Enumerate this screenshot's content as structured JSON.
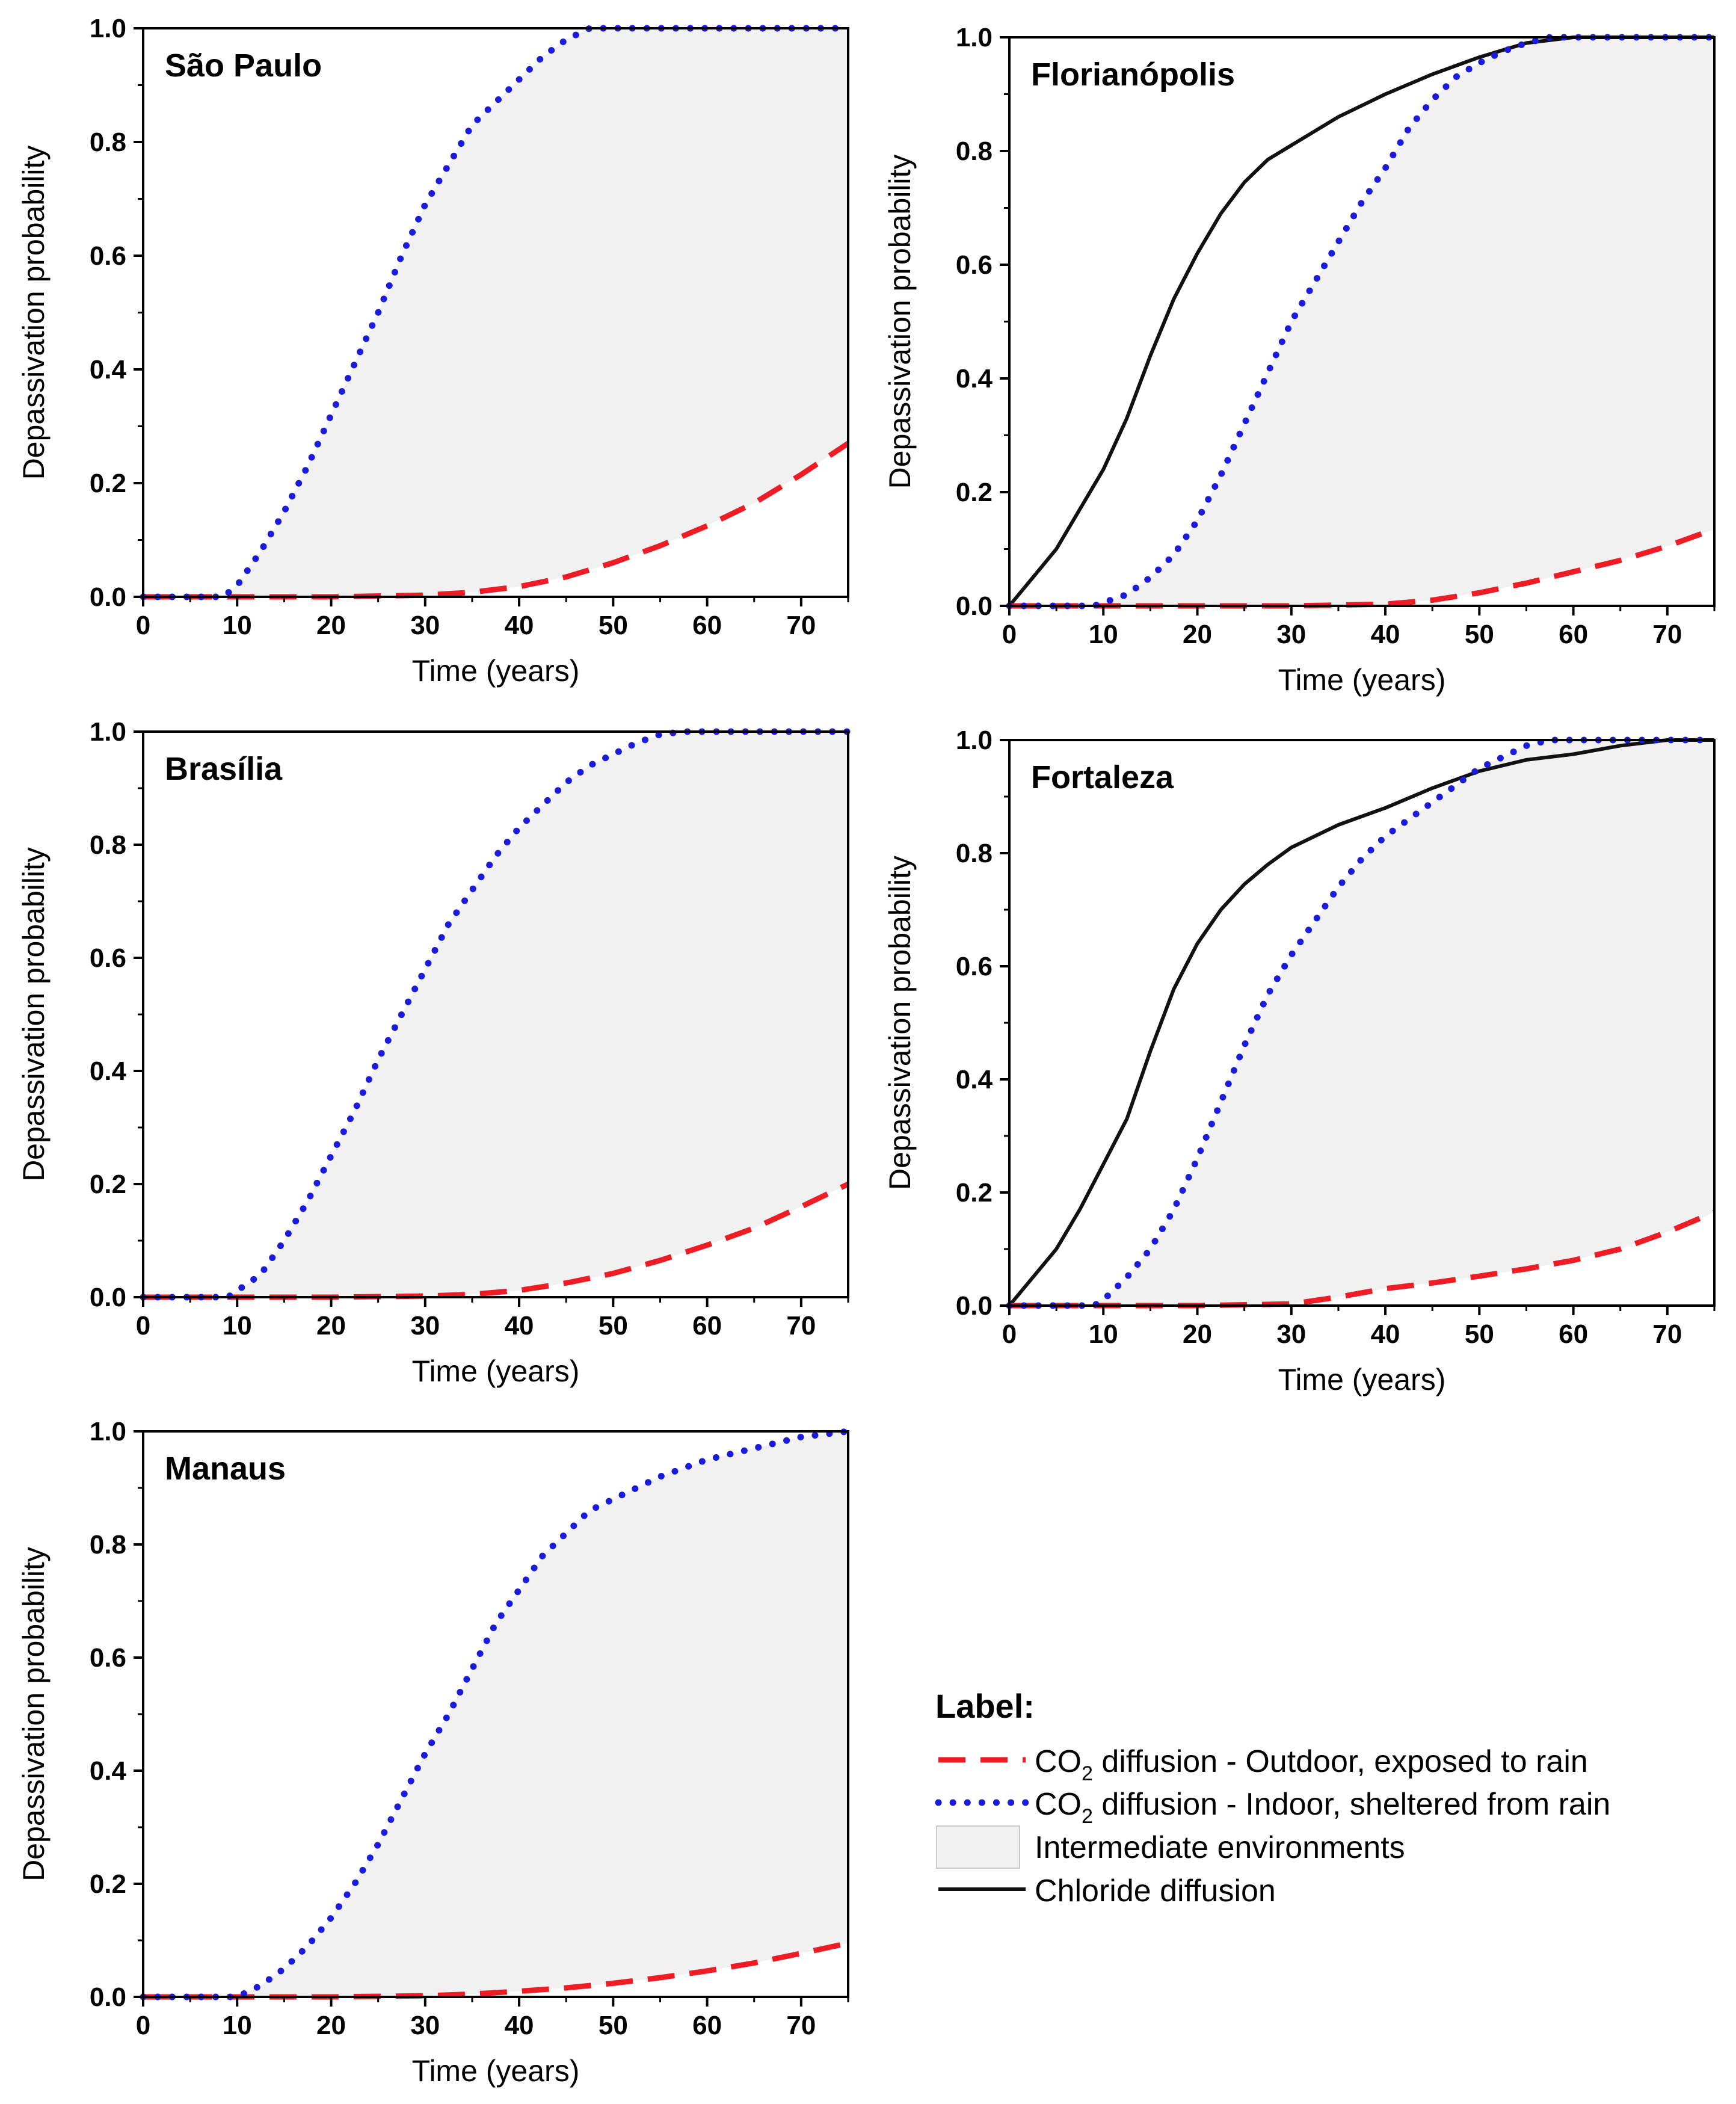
{
  "figure": {
    "legend": {
      "title": "Label:",
      "items": [
        {
          "key": "co2_outdoor",
          "prefix": "CO",
          "subscript": "2",
          "suffix": " diffusion - Outdoor, exposed to rain"
        },
        {
          "key": "co2_indoor",
          "prefix": "CO",
          "subscript": "2",
          "suffix": " diffusion - Indoor, sheltered from rain"
        },
        {
          "key": "intermediate",
          "prefix": "Intermediate environments",
          "subscript": "",
          "suffix": ""
        },
        {
          "key": "chloride",
          "prefix": "Chloride diffusion",
          "subscript": "",
          "suffix": ""
        }
      ]
    },
    "colors": {
      "co2_outdoor": "#ee1c25",
      "co2_indoor": "#1b1bdc",
      "chloride": "#111111",
      "intermediate_fill": "#f1f1f1",
      "axis": "#000000"
    }
  },
  "chart_data": [
    {
      "type": "line",
      "title": "São Paulo",
      "xlabel": "Time (years)",
      "ylabel": "Depassivation probability",
      "xlim": [
        0,
        75
      ],
      "ylim": [
        0,
        1
      ],
      "xticks": [
        0,
        10,
        20,
        30,
        40,
        50,
        60,
        70
      ],
      "yticks": [
        0.0,
        0.2,
        0.4,
        0.6,
        0.8,
        1.0
      ],
      "ytick_labels": [
        "0.0",
        "0.2",
        "0.4",
        "0.6",
        "0.8",
        "1.0"
      ],
      "series": [
        {
          "name": "CO2 diffusion - Outdoor, exposed to rain",
          "key": "co2_outdoor",
          "x": [
            0,
            10,
            20,
            30,
            35,
            40,
            45,
            50,
            55,
            60,
            65,
            70,
            75
          ],
          "y": [
            0,
            0,
            0,
            0.003,
            0.008,
            0.018,
            0.035,
            0.06,
            0.09,
            0.125,
            0.165,
            0.215,
            0.27
          ]
        },
        {
          "name": "CO2 diffusion - Indoor, sheltered from rain",
          "key": "co2_indoor",
          "x": [
            0,
            8.5,
            10,
            12.5,
            15,
            17.5,
            20,
            22.5,
            25,
            27.5,
            30,
            32.5,
            35,
            37.5,
            40,
            42.5,
            45,
            47.5,
            50,
            55,
            60,
            65,
            70,
            75
          ],
          "y": [
            0,
            0,
            0.02,
            0.08,
            0.15,
            0.23,
            0.32,
            0.41,
            0.5,
            0.6,
            0.69,
            0.76,
            0.83,
            0.87,
            0.91,
            0.95,
            0.98,
            1.0,
            1.0,
            1.0,
            1.0,
            1.0,
            1.0,
            1.0
          ]
        }
      ]
    },
    {
      "type": "line",
      "title": "Florianópolis",
      "xlabel": "Time (years)",
      "ylabel": "Depassivation probability",
      "xlim": [
        0,
        75
      ],
      "ylim": [
        0,
        1
      ],
      "xticks": [
        0,
        10,
        20,
        30,
        40,
        50,
        60,
        70
      ],
      "yticks": [
        0.0,
        0.2,
        0.4,
        0.6,
        0.8,
        1.0
      ],
      "ytick_labels": [
        "0.0",
        "0.2",
        "0.4",
        "0.6",
        "0.8",
        "1.0"
      ],
      "series": [
        {
          "name": "CO2 diffusion - Outdoor, exposed to rain",
          "key": "co2_outdoor",
          "x": [
            0,
            10,
            20,
            30,
            40,
            45,
            50,
            55,
            60,
            65,
            70,
            75
          ],
          "y": [
            0,
            0,
            0,
            0,
            0.003,
            0.01,
            0.023,
            0.04,
            0.06,
            0.08,
            0.105,
            0.135
          ]
        },
        {
          "name": "CO2 diffusion - Indoor, sheltered from rain",
          "key": "co2_indoor",
          "x": [
            0,
            9,
            12.5,
            15,
            17.5,
            20,
            22.5,
            25,
            27.5,
            30,
            32.5,
            35,
            37.5,
            40,
            42.5,
            45,
            47.5,
            50,
            52.5,
            55,
            57.5,
            60,
            65,
            70,
            75
          ],
          "y": [
            0,
            0,
            0.02,
            0.05,
            0.09,
            0.15,
            0.23,
            0.32,
            0.41,
            0.5,
            0.57,
            0.64,
            0.71,
            0.77,
            0.84,
            0.89,
            0.93,
            0.955,
            0.975,
            0.99,
            1.0,
            1.0,
            1.0,
            1.0,
            1.0
          ]
        }
      ],
      "chloride": {
        "name": "Chloride diffusion",
        "key": "chloride",
        "x": [
          0,
          2.5,
          5,
          7.5,
          10,
          12.5,
          15,
          17.5,
          20,
          22.5,
          25,
          27.5,
          30,
          35,
          40,
          45,
          50,
          55,
          60,
          65,
          70,
          75
        ],
        "y": [
          0,
          0.05,
          0.1,
          0.17,
          0.24,
          0.33,
          0.44,
          0.54,
          0.62,
          0.69,
          0.745,
          0.785,
          0.81,
          0.86,
          0.9,
          0.935,
          0.965,
          0.99,
          1.0,
          1.0,
          1.0,
          1.0
        ]
      }
    },
    {
      "type": "line",
      "title": "Brasília",
      "xlabel": "Time (years)",
      "ylabel": "Depassivation probability",
      "xlim": [
        0,
        75
      ],
      "ylim": [
        0,
        1
      ],
      "xticks": [
        0,
        10,
        20,
        30,
        40,
        50,
        60,
        70
      ],
      "yticks": [
        0.0,
        0.2,
        0.4,
        0.6,
        0.8,
        1.0
      ],
      "ytick_labels": [
        "0.0",
        "0.2",
        "0.4",
        "0.6",
        "0.8",
        "1.0"
      ],
      "series": [
        {
          "name": "CO2 diffusion - Outdoor, exposed to rain",
          "key": "co2_outdoor",
          "x": [
            0,
            10,
            20,
            30,
            35,
            40,
            45,
            50,
            55,
            60,
            65,
            70,
            75
          ],
          "y": [
            0,
            0,
            0,
            0.002,
            0.005,
            0.012,
            0.025,
            0.042,
            0.065,
            0.092,
            0.122,
            0.16,
            0.2
          ]
        },
        {
          "name": "CO2 diffusion - Indoor, sheltered from rain",
          "key": "co2_indoor",
          "x": [
            0,
            9,
            12.5,
            15,
            17.5,
            20,
            22.5,
            25,
            27.5,
            30,
            32.5,
            35,
            37.5,
            40,
            42.5,
            45,
            47.5,
            50,
            52.5,
            55,
            57.5,
            60,
            65,
            70,
            75
          ],
          "y": [
            0,
            0,
            0.04,
            0.1,
            0.17,
            0.25,
            0.33,
            0.42,
            0.5,
            0.58,
            0.66,
            0.72,
            0.78,
            0.83,
            0.87,
            0.91,
            0.94,
            0.96,
            0.98,
            0.995,
            1.0,
            1.0,
            1.0,
            1.0,
            1.0
          ]
        }
      ]
    },
    {
      "type": "line",
      "title": "Fortaleza",
      "xlabel": "Time (years)",
      "ylabel": "Depassivation probability",
      "xlim": [
        0,
        75
      ],
      "ylim": [
        0,
        1
      ],
      "xticks": [
        0,
        10,
        20,
        30,
        40,
        50,
        60,
        70
      ],
      "yticks": [
        0.0,
        0.2,
        0.4,
        0.6,
        0.8,
        1.0
      ],
      "ytick_labels": [
        "0.0",
        "0.2",
        "0.4",
        "0.6",
        "0.8",
        "1.0"
      ],
      "series": [
        {
          "name": "CO2 diffusion - Outdoor, exposed to rain",
          "key": "co2_outdoor",
          "x": [
            0,
            10,
            20,
            30,
            35,
            40,
            45,
            50,
            55,
            60,
            65,
            70,
            75
          ],
          "y": [
            0,
            0,
            0,
            0.003,
            0.015,
            0.03,
            0.04,
            0.052,
            0.065,
            0.08,
            0.1,
            0.13,
            0.165
          ]
        },
        {
          "name": "CO2 diffusion - Indoor, sheltered from rain",
          "key": "co2_indoor",
          "x": [
            0,
            9,
            10,
            12.5,
            15,
            17.5,
            20,
            22.5,
            25,
            27.5,
            30,
            32.5,
            35,
            37.5,
            40,
            42.5,
            45,
            47.5,
            50,
            52.5,
            55,
            57.5,
            60,
            65,
            70,
            75
          ],
          "y": [
            0,
            0,
            0.01,
            0.05,
            0.1,
            0.17,
            0.26,
            0.36,
            0.46,
            0.55,
            0.62,
            0.68,
            0.74,
            0.79,
            0.83,
            0.86,
            0.89,
            0.92,
            0.95,
            0.97,
            0.99,
            1.0,
            1.0,
            1.0,
            1.0,
            1.0
          ]
        }
      ],
      "chloride": {
        "name": "Chloride diffusion",
        "key": "chloride",
        "x": [
          0,
          2.5,
          5,
          7.5,
          10,
          12.5,
          15,
          17.5,
          20,
          22.5,
          25,
          27.5,
          30,
          35,
          40,
          45,
          50,
          55,
          60,
          65,
          70,
          75
        ],
        "y": [
          0,
          0.05,
          0.1,
          0.17,
          0.25,
          0.33,
          0.45,
          0.56,
          0.64,
          0.7,
          0.745,
          0.78,
          0.81,
          0.85,
          0.88,
          0.915,
          0.945,
          0.965,
          0.975,
          0.99,
          1.0,
          1.0
        ]
      }
    },
    {
      "type": "line",
      "title": "Manaus",
      "xlabel": "Time (years)",
      "ylabel": "Depassivation probability",
      "xlim": [
        0,
        75
      ],
      "ylim": [
        0,
        1
      ],
      "xticks": [
        0,
        10,
        20,
        30,
        40,
        50,
        60,
        70
      ],
      "yticks": [
        0.0,
        0.2,
        0.4,
        0.6,
        0.8,
        1.0
      ],
      "ytick_labels": [
        "0.0",
        "0.2",
        "0.4",
        "0.6",
        "0.8",
        "1.0"
      ],
      "series": [
        {
          "name": "CO2 diffusion - Outdoor, exposed to rain",
          "key": "co2_outdoor",
          "x": [
            0,
            10,
            20,
            30,
            35,
            40,
            45,
            50,
            55,
            60,
            65,
            70,
            75
          ],
          "y": [
            0,
            0,
            0,
            0.002,
            0.005,
            0.01,
            0.016,
            0.024,
            0.034,
            0.046,
            0.06,
            0.077,
            0.095
          ]
        },
        {
          "name": "CO2 diffusion - Indoor, sheltered from rain",
          "key": "co2_indoor",
          "x": [
            0,
            10,
            12.5,
            15,
            17.5,
            20,
            22.5,
            25,
            27.5,
            30,
            32.5,
            35,
            37.5,
            40,
            42.5,
            45,
            47.5,
            50,
            52.5,
            55,
            60,
            65,
            70,
            75
          ],
          "y": [
            0,
            0,
            0.02,
            0.05,
            0.09,
            0.14,
            0.2,
            0.27,
            0.35,
            0.43,
            0.5,
            0.58,
            0.66,
            0.72,
            0.78,
            0.82,
            0.86,
            0.88,
            0.9,
            0.92,
            0.95,
            0.97,
            0.99,
            1.0
          ]
        }
      ]
    }
  ]
}
